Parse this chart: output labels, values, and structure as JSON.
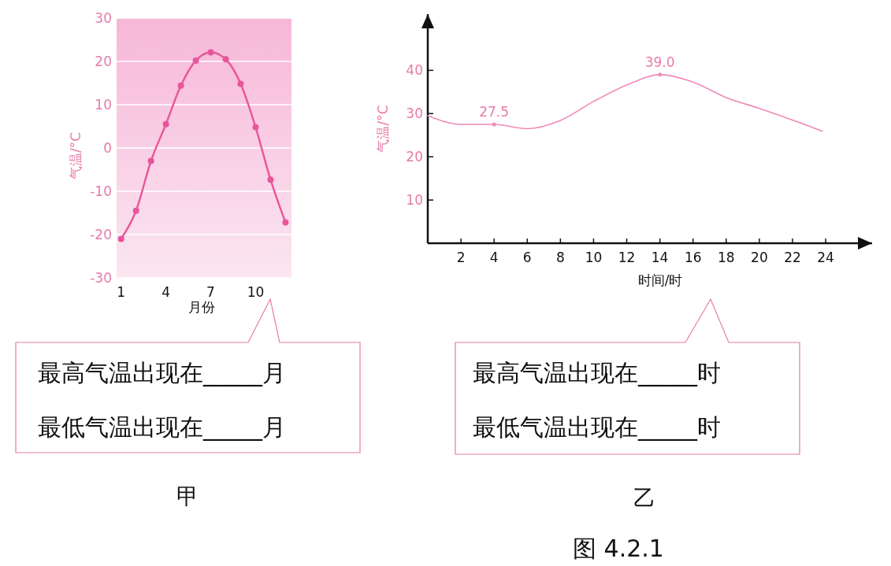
{
  "chart_data": [
    {
      "type": "line",
      "x": [
        1,
        2,
        3,
        4,
        5,
        6,
        7,
        8,
        9,
        10,
        11,
        12
      ],
      "xlabel": "月份",
      "ylabel": "气温/°C",
      "series": [
        {
          "color": "#e8559a",
          "values": [
            -21,
            -14.5,
            -3,
            5.5,
            14.4,
            20.2,
            22.1,
            20.5,
            14.8,
            4.8,
            -7.3,
            -17.2
          ]
        }
      ],
      "xlim": [
        0.7,
        12.4
      ],
      "xticks": [
        1,
        4,
        7,
        10
      ],
      "ylim": [
        -30,
        30
      ],
      "yticks": [
        -30,
        -20,
        -10,
        0,
        10,
        20,
        30
      ],
      "grid": "y",
      "marker": "circle",
      "annotations": [
        "最高气温出现在_____月",
        "最低气温出现在_____月",
        "甲"
      ]
    },
    {
      "type": "line",
      "x": [
        0,
        2,
        4,
        6,
        8,
        10,
        12,
        14,
        16,
        18,
        20,
        22,
        23.8
      ],
      "xlabel": "时间/时",
      "ylabel": "气温/°C",
      "series": [
        {
          "color": "#f08ab8",
          "values": [
            29.5,
            27.5,
            27.5,
            26.5,
            28.4,
            32.8,
            36.6,
            39.0,
            37.3,
            33.7,
            31.2,
            28.5,
            25.9
          ],
          "value_labels": [
            null,
            null,
            "27.5",
            null,
            null,
            null,
            null,
            "39.0",
            null,
            null,
            null,
            null,
            null
          ]
        }
      ],
      "xlim": [
        0,
        26.8
      ],
      "xticks": [
        2,
        4,
        6,
        8,
        10,
        12,
        14,
        16,
        18,
        20,
        22,
        24
      ],
      "ylim": [
        0,
        53
      ],
      "yticks": [
        10,
        20,
        30,
        40
      ],
      "grid": false,
      "marker": "none",
      "annotations": [
        "最高气温出现在_____时",
        "最低气温出现在_____时",
        "乙",
        "图 4.2.1"
      ]
    }
  ]
}
